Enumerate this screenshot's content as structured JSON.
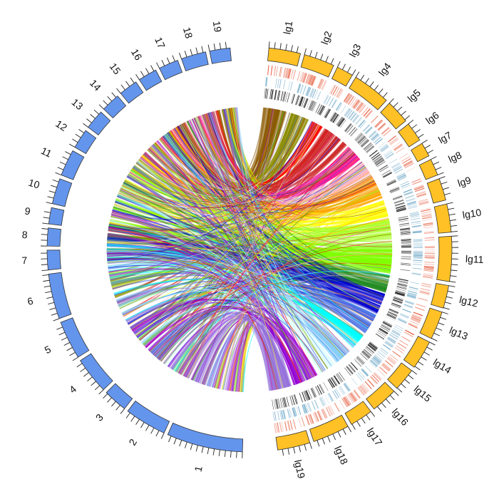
{
  "diagram": {
    "type": "circos",
    "left_chromosomes": [
      "1",
      "2",
      "3",
      "4",
      "5",
      "6",
      "7",
      "8",
      "9",
      "10",
      "11",
      "12",
      "13",
      "14",
      "15",
      "16",
      "17",
      "18",
      "19"
    ],
    "right_chromosomes": [
      "lg1",
      "lg2",
      "lg3",
      "lg4",
      "lg5",
      "lg6",
      "lg7",
      "lg8",
      "lg9",
      "lg10",
      "lg11",
      "lg12",
      "lg13",
      "lg14",
      "lg15",
      "lg16",
      "lg17",
      "lg18",
      "lg19"
    ],
    "left_sizes": [
      8.9,
      4.9,
      2.8,
      4.3,
      4.5,
      5.3,
      2.3,
      2.1,
      1.9,
      3.0,
      3.1,
      2.3,
      2.3,
      2.2,
      2.2,
      2.2,
      2.3,
      2.9,
      2.4
    ],
    "right_sizes": [
      3.6,
      3.5,
      1.9,
      4.3,
      2.7,
      2.2,
      1.6,
      1.9,
      2.5,
      3.2,
      5.1,
      2.6,
      3.2,
      3.3,
      2.6,
      3.0,
      2.6,
      4.2,
      3.7
    ],
    "colors": {
      "left_ideogram": "#6495ED",
      "right_ideogram": "#FFC125",
      "heat_track_red": "#E8674A",
      "heat_track_blue": "#6FA8C8",
      "heat_track_black": "#111111"
    },
    "link_colors": [
      "#8B5A00",
      "#8B8B00",
      "#FF0000",
      "#CD2626",
      "#FF1493",
      "#FFB6C1",
      "#FF8C00",
      "#FFA500",
      "#FFFF00",
      "#ADFF2F",
      "#7FFF00",
      "#228B22",
      "#0000CD",
      "#4169E1",
      "#00FFFF",
      "#87CEFA",
      "#E0FFFF",
      "#9400D3",
      "#9370DB"
    ]
  }
}
